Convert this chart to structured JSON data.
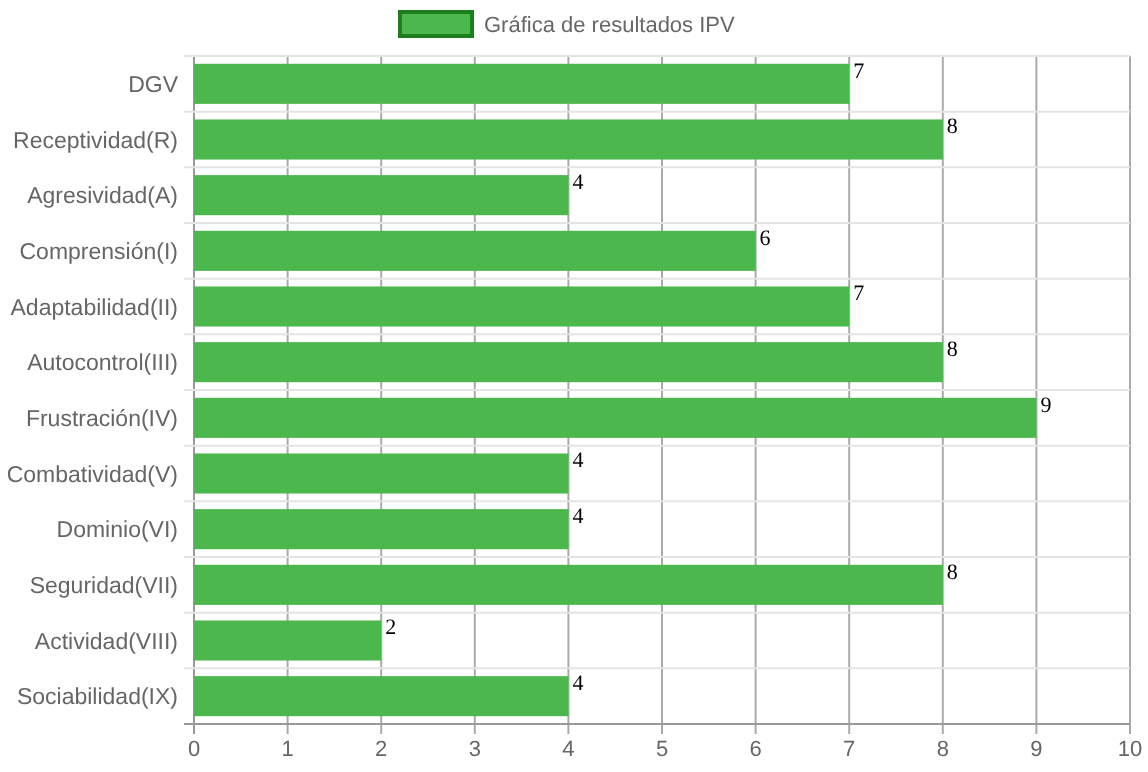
{
  "chart_data": {
    "type": "bar",
    "orientation": "horizontal",
    "categories": [
      "DGV",
      "Receptividad(R)",
      "Agresividad(A)",
      "Comprensión(I)",
      "Adaptabilidad(II)",
      "Autocontrol(III)",
      "Frustración(IV)",
      "Combatividad(V)",
      "Dominio(VI)",
      "Seguridad(VII)",
      "Actividad(VIII)",
      "Sociabilidad(IX)"
    ],
    "series": [
      {
        "name": "Gráfica de resultados IPV",
        "color": "#4cb74c",
        "values": [
          7,
          8,
          4,
          6,
          7,
          8,
          9,
          4,
          4,
          8,
          2,
          4
        ]
      }
    ],
    "xlim": [
      0,
      10
    ],
    "xticks": [
      0,
      1,
      2,
      3,
      4,
      5,
      6,
      7,
      8,
      9,
      10
    ],
    "grid": true,
    "legend": "top",
    "data_labels": true
  }
}
